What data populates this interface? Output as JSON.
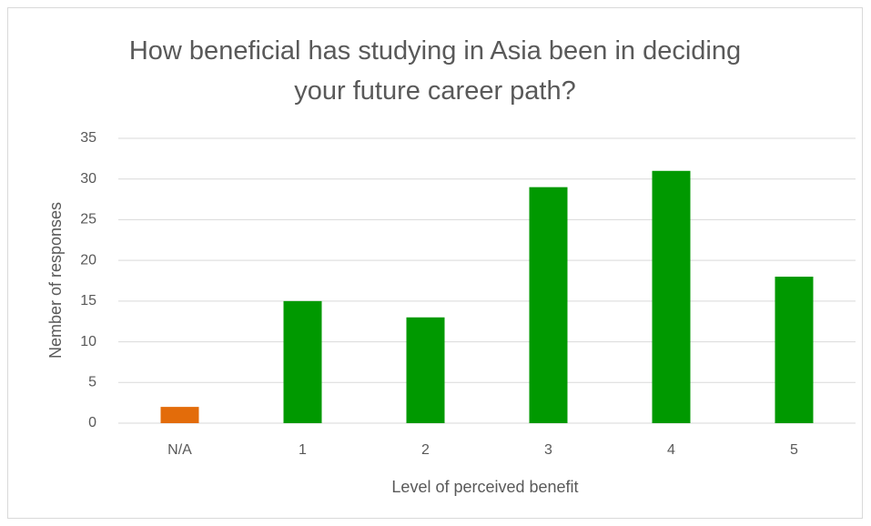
{
  "chart_data": {
    "type": "bar",
    "title": "How beneficial has studying in Asia been in deciding your future career path?",
    "x_label": "Level of perceived benefit",
    "y_label": "Nember of responses",
    "categories": [
      "N/A",
      "1",
      "2",
      "3",
      "4",
      "5"
    ],
    "values": [
      2,
      15,
      13,
      29,
      31,
      18
    ],
    "colors": [
      "#e36c0a",
      "#009900",
      "#009900",
      "#009900",
      "#009900",
      "#009900"
    ],
    "ylim": [
      0,
      35
    ],
    "yticks": [
      0,
      5,
      10,
      15,
      20,
      25,
      30,
      35
    ],
    "grid": true
  }
}
